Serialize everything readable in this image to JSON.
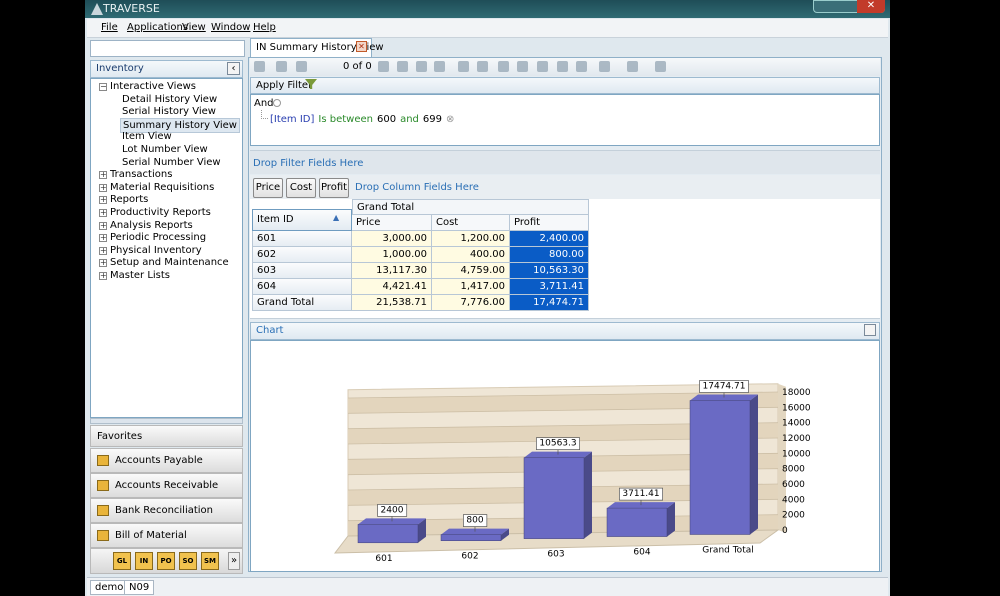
{
  "window": {
    "title": "TRAVERSE"
  },
  "menu": [
    "File",
    "Applications",
    "View",
    "Window",
    "Help"
  ],
  "sidebar": {
    "title": "Inventory",
    "tree": [
      {
        "label": "Interactive Views",
        "expanded": true,
        "children": [
          {
            "label": "Detail History View"
          },
          {
            "label": "Serial History View"
          },
          {
            "label": "Summary History View",
            "selected": true
          },
          {
            "label": "Item View"
          },
          {
            "label": "Lot Number View"
          },
          {
            "label": "Serial Number View"
          }
        ]
      },
      {
        "label": "Transactions"
      },
      {
        "label": "Material Requisitions"
      },
      {
        "label": "Reports"
      },
      {
        "label": "Productivity Reports"
      },
      {
        "label": "Analysis Reports"
      },
      {
        "label": "Periodic Processing"
      },
      {
        "label": "Physical Inventory"
      },
      {
        "label": "Setup and Maintenance"
      },
      {
        "label": "Master Lists"
      }
    ]
  },
  "favorites": {
    "title": "Favorites",
    "items": [
      "Accounts Payable",
      "Accounts Receivable",
      "Bank Reconciliation",
      "Bill of Material"
    ],
    "shortcuts": [
      "GL",
      "IN",
      "PO",
      "SO",
      "SM"
    ]
  },
  "tab": {
    "title": "IN Summary History View"
  },
  "toolbar": {
    "pager": "0 of 0"
  },
  "filter": {
    "title": "Apply Filter",
    "operator": "And",
    "condition": {
      "field": "[Item ID]",
      "op": "Is between",
      "from": "600",
      "joiner": "and",
      "to": "699"
    },
    "drop_hint": "Drop Filter Fields Here"
  },
  "pivot": {
    "data_fields": [
      "Price",
      "Cost",
      "Profit"
    ],
    "drop_hint": "Drop Column Fields Here",
    "row_header": "Item ID",
    "group_header": "Grand Total",
    "columns": [
      "Price",
      "Cost",
      "Profit"
    ],
    "rows": [
      [
        "601",
        "3,000.00",
        "1,200.00",
        "2,400.00"
      ],
      [
        "602",
        "1,000.00",
        "400.00",
        "800.00"
      ],
      [
        "603",
        "13,117.30",
        "4,759.00",
        "10,563.30"
      ],
      [
        "604",
        "4,421.41",
        "1,417.00",
        "3,711.41"
      ],
      [
        "Grand Total",
        "21,538.71",
        "7,776.00",
        "17,474.71"
      ]
    ]
  },
  "chart": {
    "title": "Chart",
    "type": "bar",
    "categories": [
      "601",
      "602",
      "603",
      "604",
      "Grand Total"
    ],
    "values": [
      2400,
      800,
      10563.3,
      3711.41,
      17474.71
    ],
    "color": "#6a6ac4",
    "ylim": [
      0,
      18000
    ],
    "yticks": [
      0,
      2000,
      4000,
      6000,
      8000,
      10000,
      12000,
      14000,
      16000,
      18000
    ]
  },
  "status": [
    "demo",
    "N09"
  ]
}
